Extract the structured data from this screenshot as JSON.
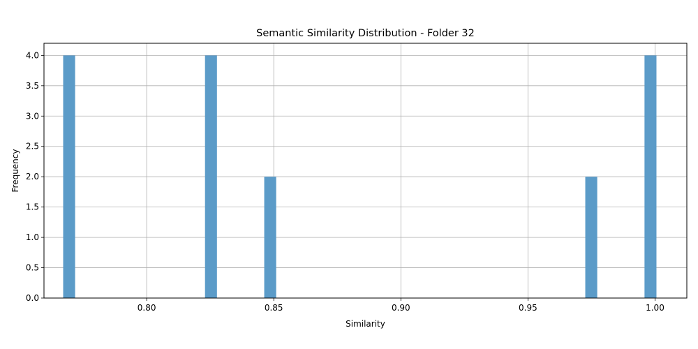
{
  "chart_data": {
    "type": "bar",
    "title": "Semantic Similarity Distribution - Folder 32",
    "xlabel": "Similarity",
    "ylabel": "Frequency",
    "xlim": [
      0.7596,
      1.0125
    ],
    "ylim": [
      0,
      4.2
    ],
    "bin_width": 0.0047,
    "bars": [
      {
        "x": 0.7695,
        "value": 4
      },
      {
        "x": 0.8253,
        "value": 4
      },
      {
        "x": 0.8486,
        "value": 2
      },
      {
        "x": 0.9749,
        "value": 2
      },
      {
        "x": 0.9982,
        "value": 4
      }
    ],
    "x_ticks": [
      "0.80",
      "0.85",
      "0.90",
      "0.95",
      "1.00"
    ],
    "x_tick_values": [
      0.8,
      0.85,
      0.9,
      0.95,
      1.0
    ],
    "y_ticks": [
      "0.0",
      "0.5",
      "1.0",
      "1.5",
      "2.0",
      "2.5",
      "3.0",
      "3.5",
      "4.0"
    ],
    "y_tick_values": [
      0,
      0.5,
      1.0,
      1.5,
      2.0,
      2.5,
      3.0,
      3.5,
      4.0
    ],
    "grid": true,
    "bar_color": "#5b9bc8"
  }
}
